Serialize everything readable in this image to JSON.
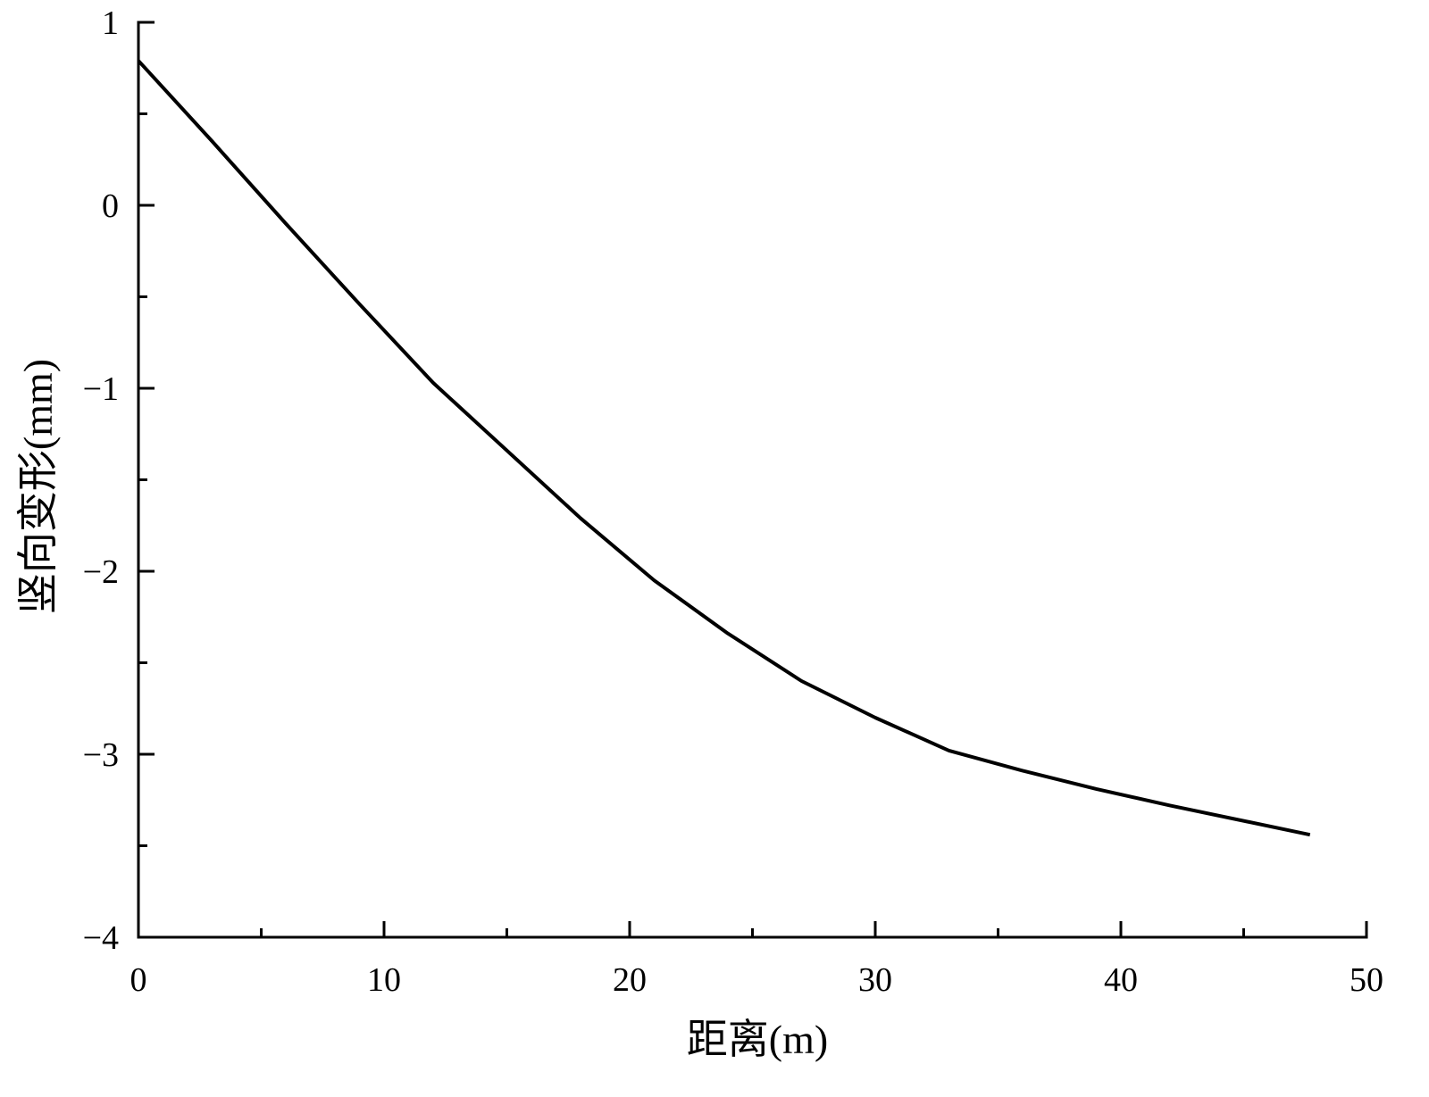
{
  "chart_data": {
    "type": "line",
    "xlabel": "距离(m)",
    "ylabel": "竖向变形(mm)",
    "x": [
      0,
      3,
      6,
      9,
      12,
      15,
      18,
      21,
      24,
      27,
      30,
      33,
      36,
      39,
      42,
      47.7
    ],
    "series": [
      {
        "name": "竖向变形",
        "color": "#000000",
        "values": [
          0.79,
          0.35,
          -0.1,
          -0.54,
          -0.97,
          -1.34,
          -1.71,
          -2.05,
          -2.34,
          -2.6,
          -2.8,
          -2.98,
          -3.09,
          -3.19,
          -3.28,
          -3.44
        ]
      }
    ],
    "xlim": [
      0,
      50
    ],
    "xticks": [
      0,
      10,
      20,
      30,
      40,
      50
    ],
    "xminor_ticks": [
      5,
      15,
      25,
      35,
      45
    ],
    "ylim": [
      -4,
      1
    ],
    "yticks": [
      {
        "value": -4,
        "label": "−4"
      },
      {
        "value": -3,
        "label": "−3"
      },
      {
        "value": -2,
        "label": "−2"
      },
      {
        "value": -1,
        "label": "−1"
      },
      0,
      1
    ],
    "yminor_ticks": [
      -3.5,
      -2.5,
      -1.5,
      -0.5,
      0.5
    ],
    "grid": false
  }
}
